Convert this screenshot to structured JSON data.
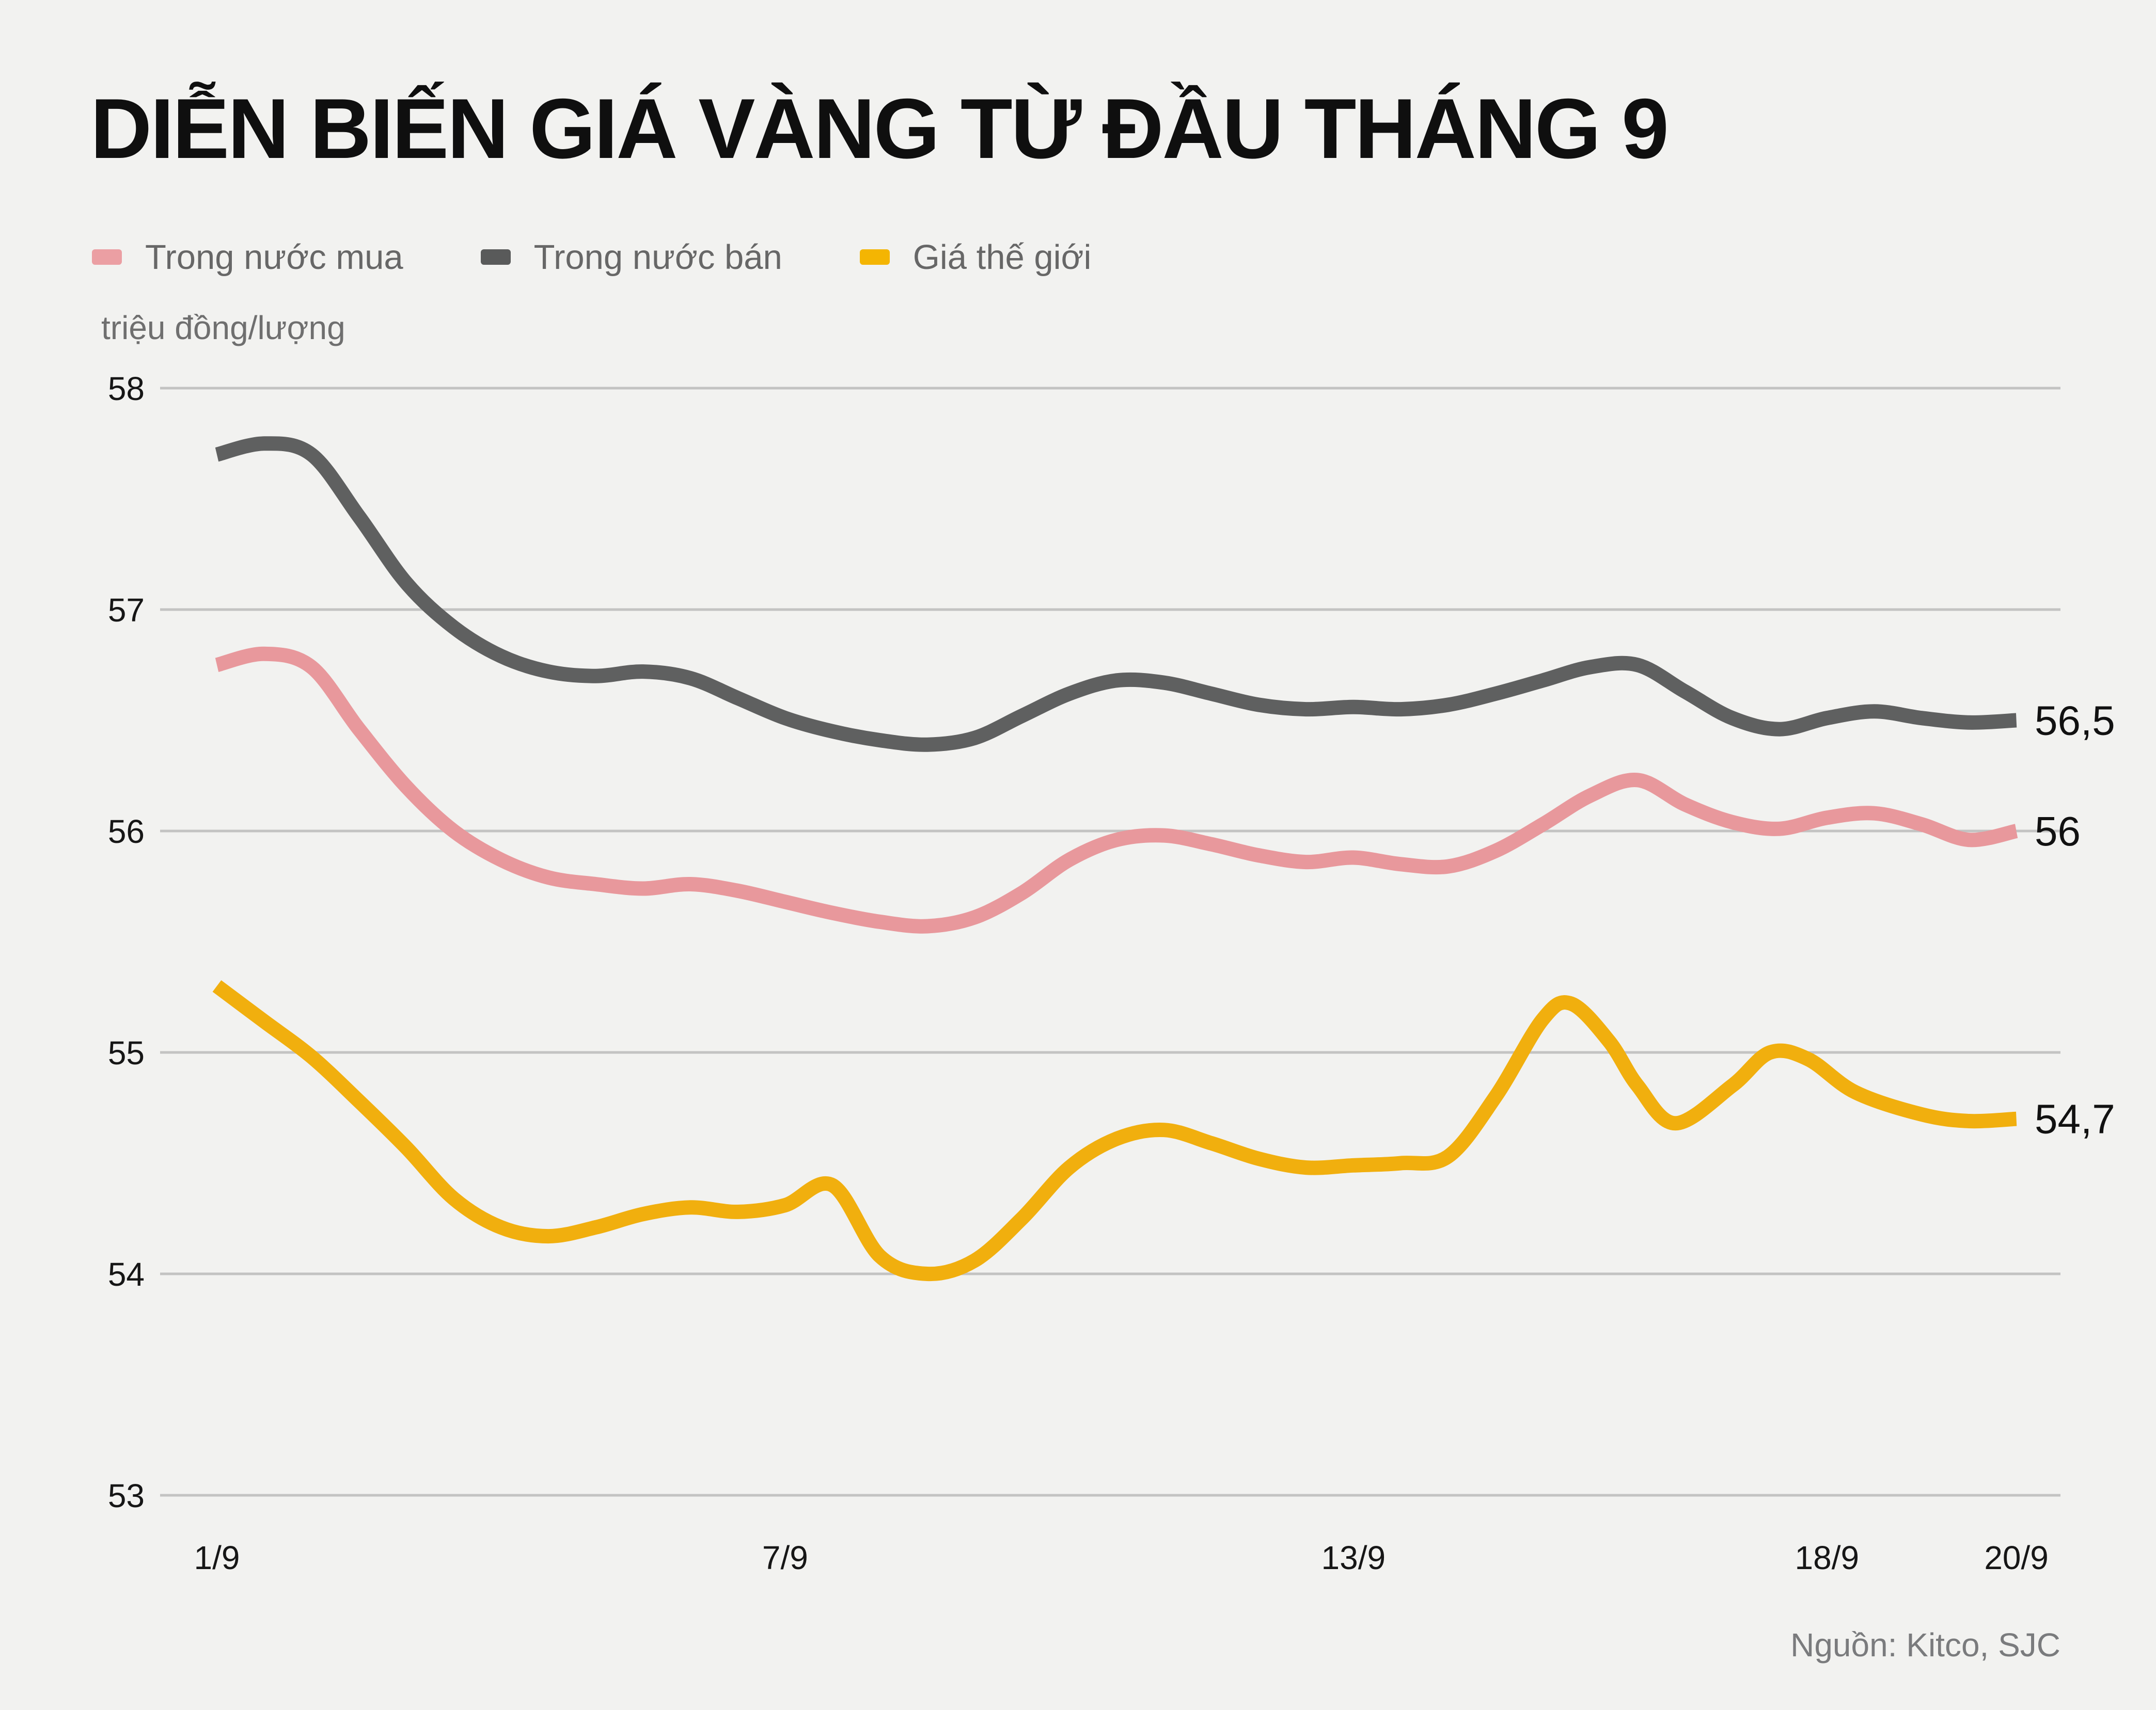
{
  "title": "DIỄN BIẾN GIÁ VÀNG TỪ ĐẦU THÁNG 9",
  "y_axis_unit": "triệu đồng/lượng",
  "source": "Nguồn: Kitco, SJC",
  "legend": {
    "items": [
      {
        "label": "Trong nước mua",
        "color": "#eb9fa3"
      },
      {
        "label": "Trong nước bán",
        "color": "#595a5a"
      },
      {
        "label": "Giá thế giới",
        "color": "#f4b502"
      }
    ]
  },
  "colors": {
    "background": "#f2f2f0",
    "gridline": "#c3c3c2",
    "axis_text": "#161616",
    "title_text": "#0f0f0f",
    "muted_text": "#6f6f6f"
  },
  "chart_data": {
    "type": "line",
    "title": "DIỄN BIẾN GIÁ VÀNG TỪ ĐẦU THÁNG 9",
    "xlabel": "",
    "ylabel": "triệu đồng/lượng",
    "ylim": [
      53,
      58
    ],
    "grid": "horizontal",
    "legend_position": "top",
    "y_ticks": [
      {
        "label": "58",
        "value": 58
      },
      {
        "label": "57",
        "value": 57
      },
      {
        "label": "56",
        "value": 56
      },
      {
        "label": "55",
        "value": 55
      },
      {
        "label": "54",
        "value": 54
      },
      {
        "label": "53",
        "value": 53
      }
    ],
    "x_ticks": [
      {
        "label": "1/9",
        "day": 1
      },
      {
        "label": "7/9",
        "day": 7
      },
      {
        "label": "13/9",
        "day": 13
      },
      {
        "label": "18/9",
        "day": 18
      },
      {
        "label": "20/9",
        "day": 20
      }
    ],
    "series": [
      {
        "name": "Trong nước mua",
        "color": "#e8989c",
        "end_label": "56",
        "points": [
          [
            1,
            56.75
          ],
          [
            1.5,
            56.8
          ],
          [
            2,
            56.74
          ],
          [
            2.5,
            56.46
          ],
          [
            3,
            56.2
          ],
          [
            3.5,
            56.0
          ],
          [
            4,
            55.87
          ],
          [
            4.5,
            55.79
          ],
          [
            5,
            55.76
          ],
          [
            5.5,
            55.74
          ],
          [
            6,
            55.76
          ],
          [
            6.5,
            55.73
          ],
          [
            7,
            55.68
          ],
          [
            7.5,
            55.63
          ],
          [
            8,
            55.59
          ],
          [
            8.5,
            55.57
          ],
          [
            9,
            55.61
          ],
          [
            9.5,
            55.72
          ],
          [
            10,
            55.87
          ],
          [
            10.5,
            55.96
          ],
          [
            11,
            55.98
          ],
          [
            11.5,
            55.94
          ],
          [
            12,
            55.89
          ],
          [
            12.5,
            55.86
          ],
          [
            13,
            55.88
          ],
          [
            13.5,
            55.85
          ],
          [
            14,
            55.84
          ],
          [
            14.5,
            55.91
          ],
          [
            15,
            56.03
          ],
          [
            15.5,
            56.16
          ],
          [
            16,
            56.23
          ],
          [
            16.5,
            56.12
          ],
          [
            17,
            56.04
          ],
          [
            17.5,
            56.01
          ],
          [
            18,
            56.06
          ],
          [
            18.5,
            56.08
          ],
          [
            19,
            56.03
          ],
          [
            19.5,
            55.96
          ],
          [
            20,
            56.0
          ]
        ]
      },
      {
        "name": "Trong nước bán",
        "color": "#5f6060",
        "end_label": "56,5",
        "points": [
          [
            1,
            57.7
          ],
          [
            1.5,
            57.75
          ],
          [
            2,
            57.7
          ],
          [
            2.5,
            57.42
          ],
          [
            3,
            57.12
          ],
          [
            3.5,
            56.92
          ],
          [
            4,
            56.79
          ],
          [
            4.5,
            56.72
          ],
          [
            5,
            56.7
          ],
          [
            5.5,
            56.72
          ],
          [
            6,
            56.69
          ],
          [
            6.5,
            56.6
          ],
          [
            7,
            56.51
          ],
          [
            7.5,
            56.45
          ],
          [
            8,
            56.41
          ],
          [
            8.5,
            56.39
          ],
          [
            9,
            56.42
          ],
          [
            9.5,
            56.52
          ],
          [
            10,
            56.62
          ],
          [
            10.5,
            56.68
          ],
          [
            11,
            56.67
          ],
          [
            11.5,
            56.62
          ],
          [
            12,
            56.57
          ],
          [
            12.5,
            56.55
          ],
          [
            13,
            56.56
          ],
          [
            13.5,
            56.55
          ],
          [
            14,
            56.57
          ],
          [
            14.5,
            56.62
          ],
          [
            15,
            56.68
          ],
          [
            15.5,
            56.74
          ],
          [
            16,
            56.75
          ],
          [
            16.5,
            56.63
          ],
          [
            17,
            56.51
          ],
          [
            17.5,
            56.46
          ],
          [
            18,
            56.51
          ],
          [
            18.5,
            56.54
          ],
          [
            19,
            56.51
          ],
          [
            19.5,
            56.49
          ],
          [
            20,
            56.5
          ]
        ]
      },
      {
        "name": "Giá thế giới",
        "color": "#f1af0e",
        "end_label": "54,7",
        "points": [
          [
            1,
            55.3
          ],
          [
            1.5,
            55.14
          ],
          [
            2,
            54.98
          ],
          [
            2.5,
            54.78
          ],
          [
            3,
            54.57
          ],
          [
            3.5,
            54.34
          ],
          [
            4,
            54.21
          ],
          [
            4.5,
            54.17
          ],
          [
            5,
            54.21
          ],
          [
            5.5,
            54.27
          ],
          [
            6,
            54.3
          ],
          [
            6.5,
            54.28
          ],
          [
            7,
            54.31
          ],
          [
            7.5,
            54.4
          ],
          [
            8,
            54.08
          ],
          [
            8.5,
            54.0
          ],
          [
            9,
            54.06
          ],
          [
            9.5,
            54.25
          ],
          [
            10,
            54.48
          ],
          [
            10.5,
            54.61
          ],
          [
            11,
            54.65
          ],
          [
            11.5,
            54.59
          ],
          [
            12,
            54.52
          ],
          [
            12.5,
            54.48
          ],
          [
            13,
            54.49
          ],
          [
            13.5,
            54.5
          ],
          [
            14,
            54.53
          ],
          [
            14.5,
            54.8
          ],
          [
            15,
            55.15
          ],
          [
            15.3,
            55.22
          ],
          [
            15.7,
            55.05
          ],
          [
            16,
            54.85
          ],
          [
            16.4,
            54.68
          ],
          [
            17,
            54.85
          ],
          [
            17.4,
            55.0
          ],
          [
            17.8,
            54.97
          ],
          [
            18.3,
            54.82
          ],
          [
            19,
            54.72
          ],
          [
            19.5,
            54.69
          ],
          [
            20,
            54.7
          ]
        ]
      }
    ]
  }
}
